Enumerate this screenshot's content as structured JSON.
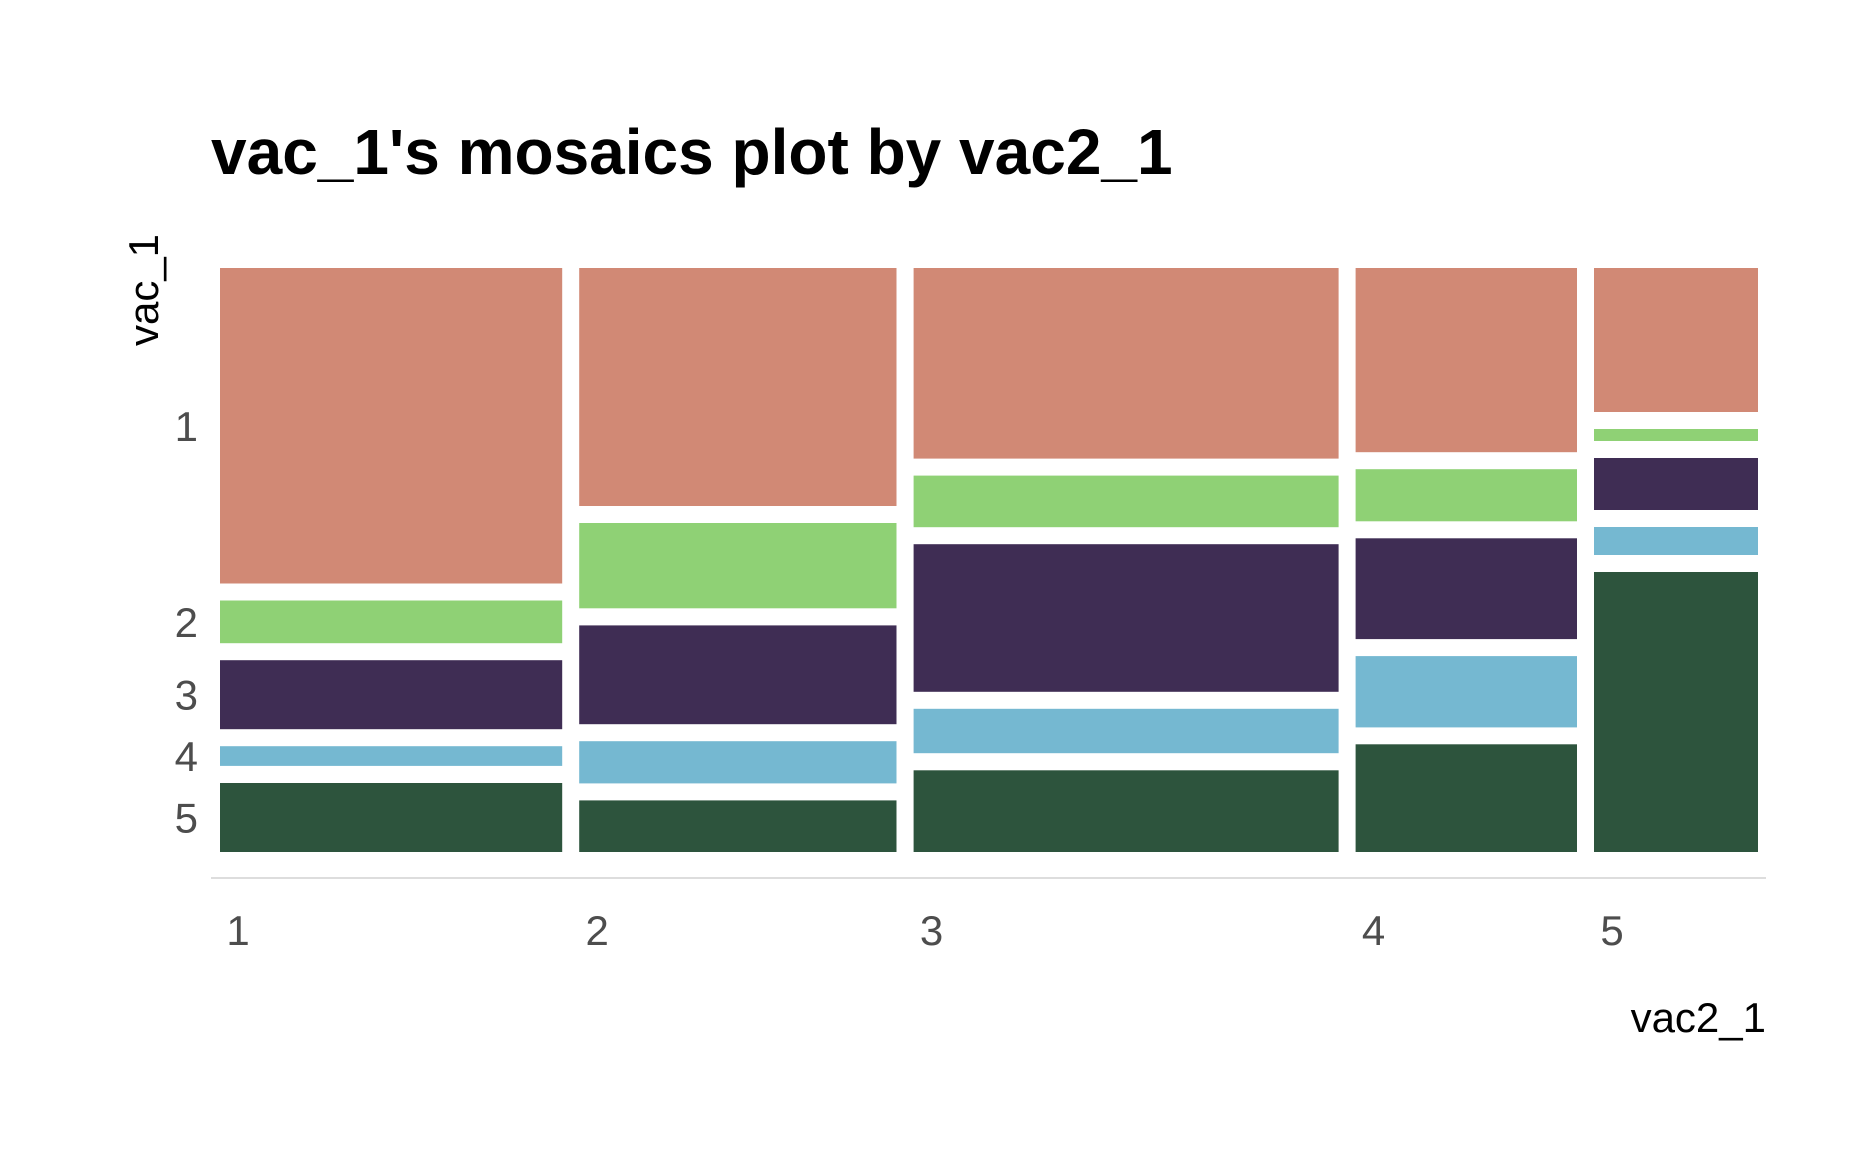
{
  "chart_data": {
    "type": "mosaic",
    "title": "vac_1's mosaics plot by vac2_1",
    "xlabel": "vac2_1",
    "ylabel": "vac_1",
    "x_categories": [
      "1",
      "2",
      "3",
      "4",
      "5"
    ],
    "y_categories": [
      "1",
      "2",
      "3",
      "4",
      "5"
    ],
    "x_shares": [
      0.2269,
      0.2104,
      0.2818,
      0.1468,
      0.1087
    ],
    "proportions": [
      [
        0.5517,
        0.0747,
        0.1207,
        0.0345,
        0.1207
      ],
      [
        0.4109,
        0.1473,
        0.1705,
        0.0729,
        0.0891
      ],
      [
        0.329,
        0.0891,
        0.2548,
        0.0767,
        0.1411
      ],
      [
        0.3174,
        0.0898,
        0.1737,
        0.1228,
        0.1856
      ],
      [
        0.2483,
        0.0207,
        0.0897,
        0.0483,
        0.4828
      ]
    ],
    "colors": [
      "#d18975",
      "#8fd175",
      "#3f2d54",
      "#75b8d1",
      "#2d543d"
    ],
    "grid": false,
    "legend": "none"
  }
}
